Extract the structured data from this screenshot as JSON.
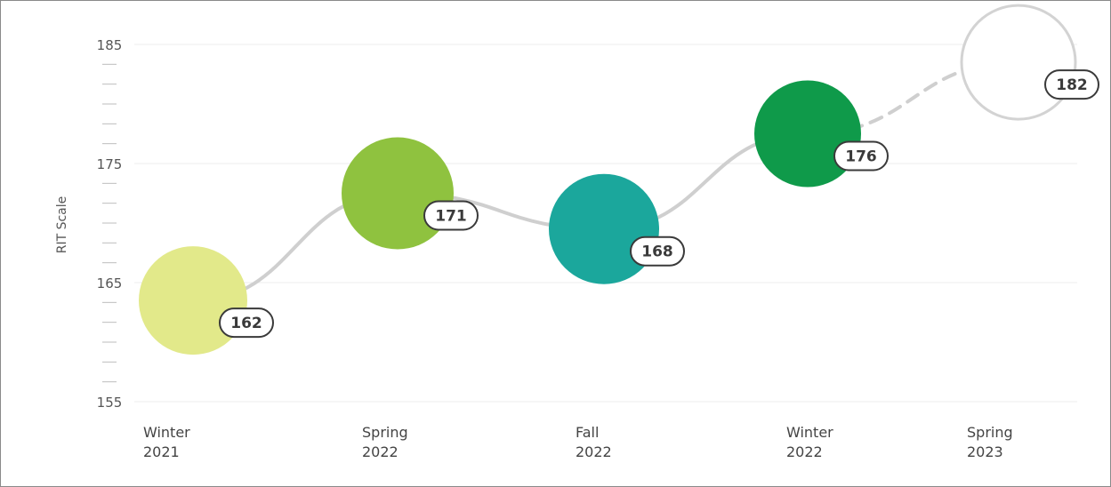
{
  "chart_data": {
    "type": "scatter",
    "title": "",
    "xlabel": "",
    "ylabel": "RIT Scale",
    "ylim": [
      155,
      185
    ],
    "yticks": [
      155,
      165,
      175,
      185
    ],
    "grid": true,
    "categories": [
      [
        "Winter",
        "2021"
      ],
      [
        "Spring",
        "2022"
      ],
      [
        "Fall",
        "2022"
      ],
      [
        "Winter",
        "2022"
      ],
      [
        "Spring",
        "2023"
      ]
    ],
    "values": [
      162,
      171,
      168,
      176,
      182
    ],
    "projected_index": 4,
    "colors": [
      "#e2e98a",
      "#8fc23f",
      "#1ba79c",
      "#0f9a4a",
      "#ffffff"
    ],
    "colors_meta": {
      "line": "#cfcfcf",
      "grid": "#ececec",
      "projected_outline": "#d3d3d3"
    }
  }
}
